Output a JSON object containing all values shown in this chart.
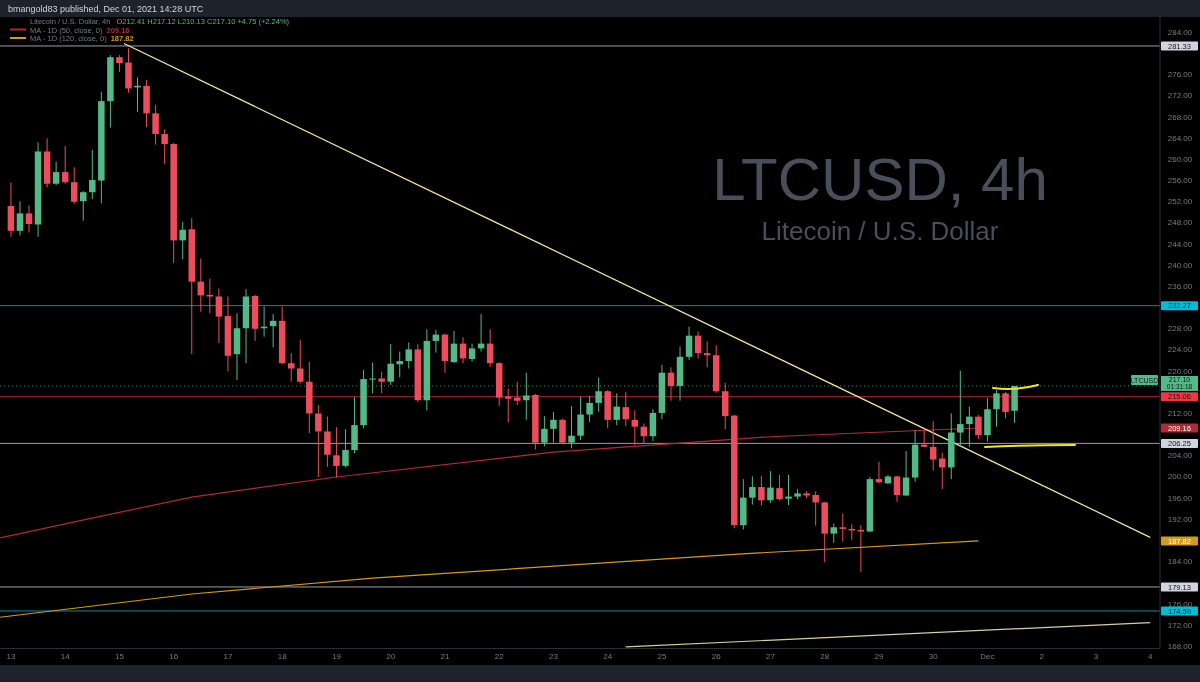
{
  "chart_data": {
    "type": "candlestick",
    "title": "LTCUSD, 4h",
    "subtitle": "Litecoin / U.S. Dollar",
    "x": [
      "2021-11-13T00:00",
      "2021-11-13T04:00",
      "2021-11-13T08:00",
      "2021-11-13T12:00",
      "2021-11-13T16:00",
      "2021-11-13T20:00",
      "2021-11-14T00:00",
      "2021-11-14T04:00",
      "2021-11-14T08:00",
      "2021-11-14T12:00",
      "2021-11-14T16:00",
      "2021-11-14T20:00",
      "2021-11-15T00:00",
      "2021-11-15T04:00",
      "2021-11-15T08:00",
      "2021-11-15T12:00",
      "2021-11-15T16:00",
      "2021-11-15T20:00",
      "2021-11-16T00:00",
      "2021-11-16T04:00",
      "2021-11-16T08:00",
      "2021-11-16T12:00",
      "2021-11-16T16:00",
      "2021-11-16T20:00",
      "2021-11-17T00:00",
      "2021-11-17T04:00",
      "2021-11-17T08:00",
      "2021-11-17T12:00",
      "2021-11-17T16:00",
      "2021-11-17T20:00",
      "2021-11-18T00:00",
      "2021-11-18T04:00",
      "2021-11-18T08:00",
      "2021-11-18T12:00",
      "2021-11-18T16:00",
      "2021-11-18T20:00",
      "2021-11-19T00:00",
      "2021-11-19T04:00",
      "2021-11-19T08:00",
      "2021-11-19T12:00",
      "2021-11-19T16:00",
      "2021-11-19T20:00",
      "2021-11-20T00:00",
      "2021-11-20T04:00",
      "2021-11-20T08:00",
      "2021-11-20T12:00",
      "2021-11-20T16:00",
      "2021-11-20T20:00",
      "2021-11-21T00:00",
      "2021-11-21T04:00",
      "2021-11-21T08:00",
      "2021-11-21T12:00",
      "2021-11-21T16:00",
      "2021-11-21T20:00",
      "2021-11-22T00:00",
      "2021-11-22T04:00",
      "2021-11-22T08:00",
      "2021-11-22T12:00",
      "2021-11-22T16:00",
      "2021-11-22T20:00",
      "2021-11-23T00:00",
      "2021-11-23T04:00",
      "2021-11-23T08:00",
      "2021-11-23T12:00",
      "2021-11-23T16:00",
      "2021-11-23T20:00",
      "2021-11-24T00:00",
      "2021-11-24T04:00",
      "2021-11-24T08:00",
      "2021-11-24T12:00",
      "2021-11-24T16:00",
      "2021-11-24T20:00",
      "2021-11-25T00:00",
      "2021-11-25T04:00",
      "2021-11-25T08:00",
      "2021-11-25T12:00",
      "2021-11-25T16:00",
      "2021-11-25T20:00",
      "2021-11-26T00:00",
      "2021-11-26T04:00",
      "2021-11-26T08:00",
      "2021-11-26T12:00",
      "2021-11-26T16:00",
      "2021-11-26T20:00",
      "2021-11-27T00:00",
      "2021-11-27T04:00",
      "2021-11-27T08:00",
      "2021-11-27T12:00",
      "2021-11-27T16:00",
      "2021-11-27T20:00",
      "2021-11-28T00:00",
      "2021-11-28T04:00",
      "2021-11-28T08:00",
      "2021-11-28T12:00",
      "2021-11-28T16:00",
      "2021-11-28T20:00",
      "2021-11-29T00:00",
      "2021-11-29T04:00",
      "2021-11-29T08:00",
      "2021-11-29T12:00",
      "2021-11-29T16:00",
      "2021-11-29T20:00",
      "2021-11-30T00:00",
      "2021-11-30T04:00",
      "2021-11-30T08:00",
      "2021-11-30T12:00",
      "2021-11-30T16:00",
      "2021-11-30T20:00",
      "2021-12-01T00:00",
      "2021-12-01T04:00",
      "2021-12-01T08:00",
      "2021-12-01T12:00"
    ],
    "ohlc": [
      [
        251.1,
        255.5,
        245.3,
        246.4
      ],
      [
        246.4,
        252.0,
        245.5,
        249.7
      ],
      [
        249.7,
        251.2,
        246.1,
        247.7
      ],
      [
        247.6,
        263.1,
        245.3,
        261.4
      ],
      [
        261.4,
        263.9,
        254.6,
        255.3
      ],
      [
        255.3,
        259.5,
        255.0,
        257.5
      ],
      [
        257.5,
        262.4,
        255.3,
        255.6
      ],
      [
        255.6,
        258.4,
        251.5,
        251.9
      ],
      [
        252.0,
        253.9,
        248.3,
        253.7
      ],
      [
        253.7,
        261.7,
        252.4,
        256.0
      ],
      [
        255.9,
        272.7,
        251.6,
        270.9
      ],
      [
        270.9,
        279.6,
        265.9,
        279.2
      ],
      [
        279.2,
        279.6,
        276.4,
        278.1
      ],
      [
        278.2,
        280.9,
        272.5,
        273.3
      ],
      [
        273.5,
        275.4,
        268.9,
        273.8
      ],
      [
        273.8,
        274.9,
        266.0,
        268.6
      ],
      [
        268.6,
        270.2,
        262.7,
        264.7
      ],
      [
        264.7,
        265.6,
        259.0,
        262.8
      ],
      [
        262.8,
        263.0,
        240.3,
        244.6
      ],
      [
        244.6,
        248.1,
        241.0,
        246.6
      ],
      [
        246.7,
        248.8,
        223.1,
        236.8
      ],
      [
        236.8,
        241.2,
        231.1,
        234.2
      ],
      [
        234.3,
        237.4,
        230.8,
        234.0
      ],
      [
        234.0,
        235.5,
        225.2,
        230.2
      ],
      [
        230.3,
        234.0,
        219.9,
        222.8
      ],
      [
        223.1,
        230.8,
        218.2,
        228.0
      ],
      [
        228.0,
        235.4,
        221.4,
        234.0
      ],
      [
        234.1,
        234.3,
        225.6,
        227.9
      ],
      [
        228.0,
        232.1,
        226.4,
        228.3
      ],
      [
        228.4,
        230.7,
        224.4,
        229.4
      ],
      [
        229.4,
        232.1,
        221.2,
        221.4
      ],
      [
        221.4,
        223.3,
        217.9,
        220.4
      ],
      [
        220.4,
        225.8,
        217.6,
        217.9
      ],
      [
        217.9,
        221.7,
        208.2,
        211.9
      ],
      [
        211.9,
        213.5,
        199.9,
        208.5
      ],
      [
        208.5,
        211.3,
        201.8,
        204.1
      ],
      [
        204.0,
        209.3,
        199.8,
        202.0
      ],
      [
        202.0,
        208.9,
        201.7,
        205.0
      ],
      [
        205.0,
        215.0,
        204.4,
        209.7
      ],
      [
        209.7,
        220.1,
        209.1,
        218.4
      ],
      [
        218.3,
        221.5,
        215.7,
        218.5
      ],
      [
        218.5,
        219.8,
        215.7,
        217.9
      ],
      [
        217.9,
        225.0,
        217.3,
        221.3
      ],
      [
        221.2,
        223.6,
        218.7,
        221.8
      ],
      [
        221.8,
        225.3,
        220.4,
        224.0
      ],
      [
        224.0,
        225.0,
        214.1,
        214.4
      ],
      [
        214.4,
        227.8,
        212.5,
        225.6
      ],
      [
        225.6,
        227.7,
        223.4,
        226.8
      ],
      [
        226.8,
        227.0,
        219.6,
        221.8
      ],
      [
        221.6,
        227.5,
        221.5,
        225.1
      ],
      [
        225.1,
        226.3,
        221.4,
        222.3
      ],
      [
        222.2,
        225.1,
        221.7,
        224.2
      ],
      [
        224.2,
        230.7,
        223.6,
        225.1
      ],
      [
        225.1,
        227.8,
        220.7,
        221.4
      ],
      [
        221.4,
        221.6,
        213.3,
        214.9
      ],
      [
        215.1,
        216.6,
        210.2,
        214.7
      ],
      [
        214.9,
        217.9,
        213.5,
        214.3
      ],
      [
        214.4,
        219.6,
        210.7,
        215.3
      ],
      [
        215.4,
        215.6,
        205.1,
        206.4
      ],
      [
        206.4,
        211.4,
        205.7,
        209.0
      ],
      [
        209.0,
        212.2,
        206.4,
        210.7
      ],
      [
        210.7,
        210.9,
        206.3,
        206.4
      ],
      [
        206.4,
        213.3,
        205.3,
        207.7
      ],
      [
        207.7,
        215.1,
        206.9,
        211.7
      ],
      [
        211.7,
        215.2,
        210.3,
        213.9
      ],
      [
        213.9,
        218.7,
        212.2,
        216.1
      ],
      [
        216.1,
        216.3,
        209.1,
        210.7
      ],
      [
        210.7,
        215.7,
        209.7,
        213.2
      ],
      [
        213.1,
        216.0,
        209.5,
        210.8
      ],
      [
        210.7,
        212.5,
        205.9,
        209.4
      ],
      [
        209.4,
        210.0,
        206.3,
        207.6
      ],
      [
        207.6,
        212.7,
        206.7,
        212.0
      ],
      [
        212.0,
        221.1,
        210.8,
        219.6
      ],
      [
        219.6,
        220.6,
        214.3,
        217.1
      ],
      [
        217.1,
        224.5,
        214.3,
        222.6
      ],
      [
        222.6,
        228.3,
        222.0,
        226.6
      ],
      [
        226.6,
        227.4,
        222.3,
        223.3
      ],
      [
        223.3,
        225.5,
        220.6,
        222.9
      ],
      [
        222.9,
        224.8,
        215.8,
        216.1
      ],
      [
        216.1,
        217.7,
        208.9,
        211.4
      ],
      [
        211.5,
        211.6,
        190.2,
        190.8
      ],
      [
        190.8,
        199.5,
        190.0,
        196.0
      ],
      [
        196.0,
        200.0,
        194.7,
        198.0
      ],
      [
        198.0,
        200.1,
        194.5,
        195.5
      ],
      [
        195.5,
        201.0,
        195.0,
        197.9
      ],
      [
        197.8,
        200.3,
        195.5,
        195.7
      ],
      [
        195.8,
        200.3,
        194.6,
        196.2
      ],
      [
        196.2,
        197.6,
        195.7,
        196.8
      ],
      [
        196.8,
        197.2,
        195.9,
        196.4
      ],
      [
        196.5,
        197.2,
        190.7,
        195.1
      ],
      [
        195.1,
        195.2,
        183.8,
        189.2
      ],
      [
        189.2,
        191.1,
        187.5,
        190.4
      ],
      [
        190.4,
        193.0,
        187.7,
        190.1
      ],
      [
        190.1,
        191.0,
        188.0,
        189.8
      ],
      [
        189.9,
        190.8,
        181.9,
        189.6
      ],
      [
        189.6,
        199.9,
        189.5,
        199.5
      ],
      [
        199.5,
        202.8,
        198.7,
        198.9
      ],
      [
        198.7,
        200.3,
        198.6,
        200.0
      ],
      [
        200.0,
        200.1,
        195.2,
        196.5
      ],
      [
        196.4,
        204.8,
        196.3,
        199.8
      ],
      [
        199.8,
        208.8,
        199.0,
        206.0
      ],
      [
        206.0,
        208.8,
        205.5,
        205.6
      ],
      [
        205.6,
        210.4,
        201.1,
        203.2
      ],
      [
        203.4,
        204.5,
        197.6,
        201.7
      ],
      [
        201.7,
        211.9,
        199.5,
        208.3
      ],
      [
        208.3,
        220.0,
        205.6,
        209.9
      ],
      [
        209.9,
        213.2,
        205.6,
        211.3
      ],
      [
        211.3,
        211.6,
        207.1,
        207.8
      ],
      [
        207.8,
        214.8,
        206.6,
        212.7
      ],
      [
        212.7,
        216.3,
        209.4,
        215.7
      ],
      [
        215.7,
        216.0,
        211.0,
        212.2
      ],
      [
        212.41,
        217.12,
        210.13,
        217.1
      ]
    ],
    "colors": [
      "#eb4d5c",
      "#53b987",
      "#eb4d5c",
      "#53b987",
      "#eb4d5c",
      "#53b987",
      "#eb4d5c",
      "#eb4d5c",
      "#53b987",
      "#53b987",
      "#53b987",
      "#53b987",
      "#eb4d5c",
      "#eb4d5c",
      "#53b987",
      "#eb4d5c",
      "#eb4d5c",
      "#eb4d5c",
      "#eb4d5c",
      "#53b987",
      "#eb4d5c",
      "#eb4d5c",
      "#eb4d5c",
      "#eb4d5c",
      "#eb4d5c",
      "#53b987",
      "#53b987",
      "#eb4d5c",
      "#53b987",
      "#53b987",
      "#eb4d5c",
      "#eb4d5c",
      "#eb4d5c",
      "#eb4d5c",
      "#eb4d5c",
      "#eb4d5c",
      "#eb4d5c",
      "#53b987",
      "#53b987",
      "#53b987",
      "#53b987",
      "#eb4d5c",
      "#53b987",
      "#53b987",
      "#53b987",
      "#eb4d5c",
      "#53b987",
      "#53b987",
      "#eb4d5c",
      "#53b987",
      "#eb4d5c",
      "#53b987",
      "#53b987",
      "#eb4d5c",
      "#eb4d5c",
      "#eb4d5c",
      "#eb4d5c",
      "#53b987",
      "#eb4d5c",
      "#53b987",
      "#53b987",
      "#eb4d5c",
      "#53b987",
      "#53b987",
      "#53b987",
      "#53b987",
      "#eb4d5c",
      "#53b987",
      "#eb4d5c",
      "#eb4d5c",
      "#eb4d5c",
      "#53b987",
      "#53b987",
      "#eb4d5c",
      "#53b987",
      "#53b987",
      "#eb4d5c",
      "#eb4d5c",
      "#eb4d5c",
      "#eb4d5c",
      "#eb4d5c",
      "#53b987",
      "#53b987",
      "#eb4d5c",
      "#53b987",
      "#eb4d5c",
      "#53b987",
      "#53b987",
      "#eb4d5c",
      "#eb4d5c",
      "#eb4d5c",
      "#53b987",
      "#eb4d5c",
      "#eb4d5c",
      "#eb4d5c",
      "#53b987",
      "#eb4d5c",
      "#53b987",
      "#eb4d5c",
      "#53b987",
      "#53b987",
      "#eb4d5c",
      "#eb4d5c",
      "#eb4d5c",
      "#53b987",
      "#53b987",
      "#53b987",
      "#eb4d5c",
      "#53b987",
      "#53b987",
      "#eb4d5c",
      "#53b987"
    ],
    "series": [
      {
        "type": "line",
        "name": "MA - 1D (50, close, 0)",
        "color": "#b22833",
        "x": [
          "2021-11-12T19:10",
          "2021-11-14T16:00",
          "2021-11-16T08:00",
          "2021-11-19T00:00",
          "2021-11-23T00:00",
          "2021-11-27T00:00",
          "2021-11-30T20:00"
        ],
        "values": [
          188.4,
          192.5,
          196.1,
          199.9,
          204.6,
          207.5,
          209.16
        ]
      },
      {
        "type": "line",
        "name": "MA - 1D (120, close, 0)",
        "color": "#d49a1a",
        "x": [
          "2021-11-12T19:10",
          "2021-11-16T08:00",
          "2021-11-19T16:00",
          "2021-11-26T08:00",
          "2021-11-30T20:00"
        ],
        "values": [
          173.4,
          177.8,
          180.8,
          185.3,
          187.82
        ]
      },
      {
        "type": "line",
        "color": "#f2e6a5",
        "x": [
          "2021-11-15T02:00",
          "2021-12-04T00:00"
        ],
        "values": [
          281.8,
          188.5
        ]
      },
      {
        "type": "line",
        "color": "#d8cfa0",
        "x": [
          "2021-11-24T08:00",
          "2021-12-04T00:00"
        ],
        "values": [
          167.8,
          172.4
        ]
      }
    ],
    "ref_lines": [
      {
        "axis": "y",
        "value": 281.33,
        "label": "281.33",
        "color": "#d1d4dc"
      },
      {
        "axis": "y",
        "value": 232.27,
        "label": "232.27",
        "color": "#00bcd4"
      },
      {
        "axis": "y",
        "value": 215.06,
        "label": "215.06",
        "color": "#f23645"
      },
      {
        "axis": "y",
        "value": 206.25,
        "label": "206.25",
        "color": "#d1d4dc"
      },
      {
        "axis": "y",
        "value": 179.13,
        "label": "179.13",
        "color": "#d1d4dc"
      },
      {
        "axis": "y",
        "value": 174.59,
        "label": "174.59",
        "color": "#00bcd4"
      },
      {
        "axis": "y",
        "value": 217.1,
        "label": "217.10",
        "color": "#53b987",
        "line_style": "dotted"
      }
    ],
    "annotations": [
      "bmangold83 published, Dec 01, 2021 14:28 UTC",
      "Litecoin / U.S. Dollar, 4h",
      "O212.41 H217.12 L210.13 C217.10 +4.75 (+2.24%)",
      "LTCUSD",
      "01:31:18",
      "209.16",
      "187.82"
    ],
    "xlim": [
      "2021-11-12T19:10",
      "2021-12-04T04:20"
    ],
    "xticks": [
      {
        "value": "2021-11-13",
        "label": "13"
      },
      {
        "value": "2021-11-14",
        "label": "14"
      },
      {
        "value": "2021-11-15",
        "label": "15"
      },
      {
        "value": "2021-11-16",
        "label": "16"
      },
      {
        "value": "2021-11-17",
        "label": "17"
      },
      {
        "value": "2021-11-18",
        "label": "18"
      },
      {
        "value": "2021-11-19",
        "label": "19"
      },
      {
        "value": "2021-11-20",
        "label": "20"
      },
      {
        "value": "2021-11-21",
        "label": "21"
      },
      {
        "value": "2021-11-22",
        "label": "22"
      },
      {
        "value": "2021-11-23",
        "label": "23"
      },
      {
        "value": "2021-11-24",
        "label": "24"
      },
      {
        "value": "2021-11-25",
        "label": "25"
      },
      {
        "value": "2021-11-26",
        "label": "26"
      },
      {
        "value": "2021-11-27",
        "label": "27"
      },
      {
        "value": "2021-11-28",
        "label": "28"
      },
      {
        "value": "2021-11-29",
        "label": "29"
      },
      {
        "value": "2021-11-30",
        "label": "30"
      },
      {
        "value": "2021-12-01",
        "label": "Dec"
      },
      {
        "value": "2021-12-02",
        "label": "2"
      },
      {
        "value": "2021-12-03",
        "label": "3"
      },
      {
        "value": "2021-12-04",
        "label": "4"
      }
    ],
    "ylim": [
      167.5,
      286.8
    ],
    "yticks": [
      {
        "value": 168,
        "label": "168.00"
      },
      {
        "value": 172,
        "label": "172.00"
      },
      {
        "value": 176,
        "label": "176.00"
      },
      {
        "value": 184,
        "label": "184.00"
      },
      {
        "value": 192,
        "label": "192.00"
      },
      {
        "value": 196,
        "label": "196.00"
      },
      {
        "value": 200,
        "label": "200.00"
      },
      {
        "value": 204,
        "label": "204.00"
      },
      {
        "value": 212,
        "label": "212.00"
      },
      {
        "value": 220,
        "label": "220.00"
      },
      {
        "value": 224,
        "label": "224.00"
      },
      {
        "value": 228,
        "label": "228.00"
      },
      {
        "value": 236,
        "label": "236.00"
      },
      {
        "value": 240,
        "label": "240.00"
      },
      {
        "value": 244,
        "label": "244.00"
      },
      {
        "value": 248,
        "label": "248.00"
      },
      {
        "value": 252,
        "label": "252.00"
      },
      {
        "value": 256,
        "label": "256.00"
      },
      {
        "value": 260,
        "label": "260.00"
      },
      {
        "value": 264,
        "label": "264.00"
      },
      {
        "value": 268,
        "label": "268.00"
      },
      {
        "value": 272,
        "label": "272.00"
      },
      {
        "value": 276,
        "label": "276.00"
      },
      {
        "value": 284,
        "label": "284.00"
      }
    ],
    "legend": "top left"
  }
}
